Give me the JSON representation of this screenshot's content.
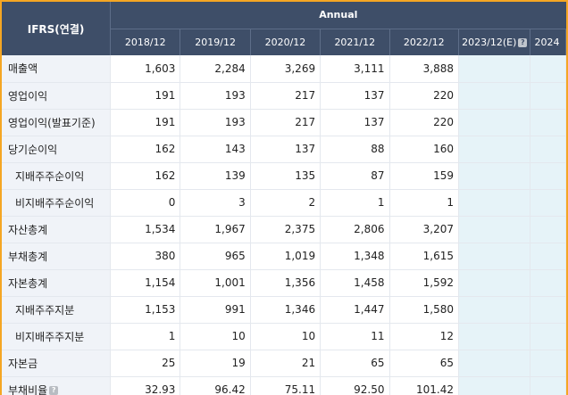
{
  "header": {
    "corner": "IFRS(연결)",
    "annual": "Annual",
    "years": [
      "2018/12",
      "2019/12",
      "2020/12",
      "2021/12",
      "2022/12"
    ],
    "est_year": "2023/12(E)",
    "next_year": "2024",
    "help_glyph": "?"
  },
  "rows": [
    {
      "label": "매출액",
      "values": [
        "1,603",
        "2,284",
        "3,269",
        "3,111",
        "3,888"
      ]
    },
    {
      "label": "영업이익",
      "values": [
        "191",
        "193",
        "217",
        "137",
        "220"
      ]
    },
    {
      "label": "영업이익(발표기준)",
      "values": [
        "191",
        "193",
        "217",
        "137",
        "220"
      ]
    },
    {
      "label": "당기순이익",
      "values": [
        "162",
        "143",
        "137",
        "88",
        "160"
      ]
    },
    {
      "label": "지배주주순이익",
      "values": [
        "162",
        "139",
        "135",
        "87",
        "159"
      ]
    },
    {
      "label": "비지배주주순이익",
      "values": [
        "0",
        "3",
        "2",
        "1",
        "1"
      ]
    },
    {
      "label": "자산총계",
      "values": [
        "1,534",
        "1,967",
        "2,375",
        "2,806",
        "3,207"
      ]
    },
    {
      "label": "부채총계",
      "values": [
        "380",
        "965",
        "1,019",
        "1,348",
        "1,615"
      ]
    },
    {
      "label": "자본총계",
      "values": [
        "1,154",
        "1,001",
        "1,356",
        "1,458",
        "1,592"
      ]
    },
    {
      "label": "지배주주지분",
      "values": [
        "1,153",
        "991",
        "1,346",
        "1,447",
        "1,580"
      ]
    },
    {
      "label": "비지배주주지분",
      "values": [
        "1",
        "10",
        "10",
        "11",
        "12"
      ]
    },
    {
      "label": "자본금",
      "values": [
        "25",
        "19",
        "21",
        "65",
        "65"
      ]
    },
    {
      "label": "부채비율",
      "values": [
        "32.93",
        "96.42",
        "75.11",
        "92.50",
        "101.42"
      ]
    }
  ],
  "colors": {
    "header_bg": "#3e4e68",
    "label_bg": "#f0f3f8",
    "estimate_bg": "#e6f3f8",
    "frame": "#f5a623"
  }
}
